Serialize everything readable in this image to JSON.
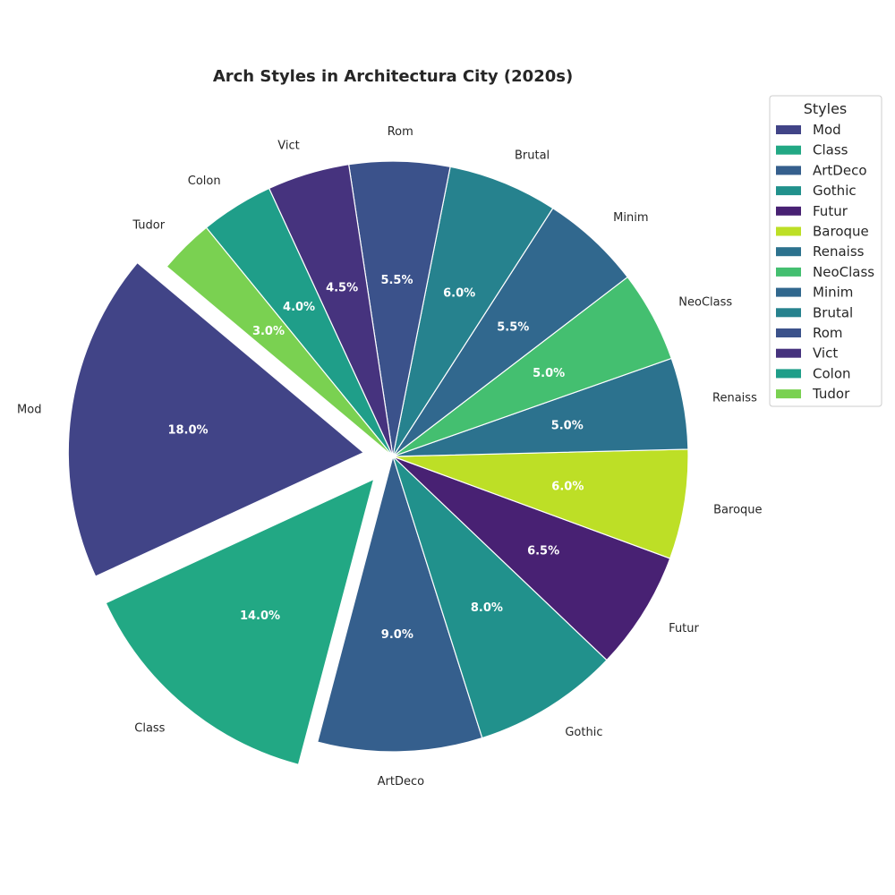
{
  "chart_data": {
    "type": "pie",
    "title": "Arch Styles in Architectura City (2020s)",
    "legend_title": "Styles",
    "legend_position": "top-right",
    "start_angle_deg": 140,
    "direction": "counterclockwise",
    "slices": [
      {
        "label": "Mod",
        "value": 18.0,
        "pct_label": "18.0%",
        "color": "#414487",
        "explode": 0.1
      },
      {
        "label": "Class",
        "value": 14.0,
        "pct_label": "14.0%",
        "color": "#22a884",
        "explode": 0.1
      },
      {
        "label": "ArtDeco",
        "value": 9.0,
        "pct_label": "9.0%",
        "color": "#355f8d",
        "explode": 0.0
      },
      {
        "label": "Gothic",
        "value": 8.0,
        "pct_label": "8.0%",
        "color": "#21918c",
        "explode": 0.0
      },
      {
        "label": "Futur",
        "value": 6.5,
        "pct_label": "6.5%",
        "color": "#482173",
        "explode": 0.0
      },
      {
        "label": "Baroque",
        "value": 6.0,
        "pct_label": "6.0%",
        "color": "#bddf26",
        "explode": 0.0
      },
      {
        "label": "Renaiss",
        "value": 5.0,
        "pct_label": "5.0%",
        "color": "#2c728e",
        "explode": 0.0
      },
      {
        "label": "NeoClass",
        "value": 5.0,
        "pct_label": "5.0%",
        "color": "#44bf70",
        "explode": 0.0
      },
      {
        "label": "Minim",
        "value": 5.5,
        "pct_label": "5.5%",
        "color": "#31688e",
        "explode": 0.0
      },
      {
        "label": "Brutal",
        "value": 6.0,
        "pct_label": "6.0%",
        "color": "#26828e",
        "explode": 0.0
      },
      {
        "label": "Rom",
        "value": 5.5,
        "pct_label": "5.5%",
        "color": "#3b528b",
        "explode": 0.0
      },
      {
        "label": "Vict",
        "value": 4.5,
        "pct_label": "4.5%",
        "color": "#46337e",
        "explode": 0.0
      },
      {
        "label": "Colon",
        "value": 4.0,
        "pct_label": "4.0%",
        "color": "#1f9e89",
        "explode": 0.0
      },
      {
        "label": "Tudor",
        "value": 3.0,
        "pct_label": "3.0%",
        "color": "#7ad151",
        "explode": 0.0
      }
    ]
  }
}
